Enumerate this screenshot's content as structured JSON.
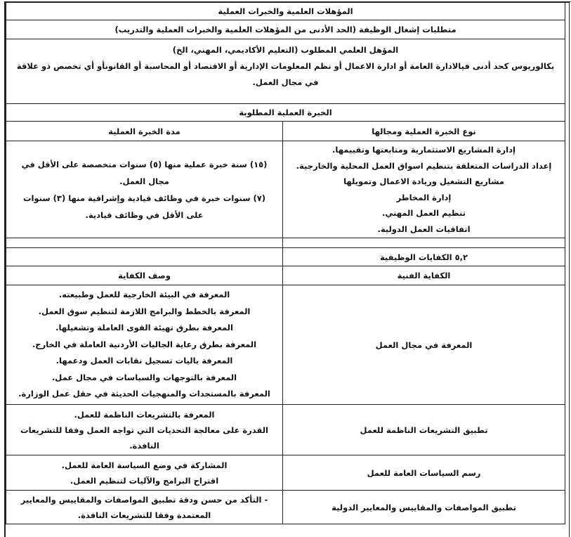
{
  "section_title": "المؤهلات العلمية والخبرات العملية",
  "requirements_title": "متطلبات إشغال الوظيفة (الحد الأدنى من المؤهلات العلمية والخبرات العملية والتدريب)",
  "qualification": {
    "heading": "المؤهل العلمي المطلوب (التعليم الأكاديمي، المهني، الخ)",
    "text": "بكالوريوس كحد أدنى فيالادارة العامة أو ادارة الاعمال أو نظم المعلومات الإدارية أو الاقتصاد أو المحاسبة أو القانونأو أي تخصص ذو علاقة في مجال العمل."
  },
  "experience": {
    "title": "الخبرة العملية المطلوبة",
    "col_type": "نوع الخبرة العملية ومجالها",
    "col_duration": "مدة الخبرة العملية",
    "types": [
      "إدارة المشاريع الاستثمارية ومتابعتها وتقييمها.",
      "إعداد الدراسات المتعلقة بتنظيم اسواق العمل المحلية والخارجية.",
      "مشاريع التشغيل وريادة الاعمال وتمويلها",
      "إدارة المخاطر",
      "تنظيم العمل المهني.",
      "اتفاقيات العمل الدولية."
    ],
    "durations": [
      "(١٥) سنة خبرة عملية منها (٥) سنوات متخصصة على الأقل في مجال العمل.",
      "(٧) سنوات خبرة في وظائف قيادية وإشراقية منها (٣) سنوات على الأقل في وظائف قيادية."
    ]
  },
  "competencies": {
    "title": "٥,٢ الكفايات الوظيفية",
    "col_competency": "الكفاية الفنية",
    "col_description": "وصف الكفاية",
    "rows": [
      {
        "name": "المعرفة في مجال العمل",
        "lines": [
          "المعرفة في البيئة الخارجية للعمل وطبيعته.",
          "المعرفة بالخطط والبرامج اللازمة لتنظيم سوق العمل.",
          "المعرفة بطرق تهيئة القوى العاملة وتشغيلها.",
          "المعرفة بطرق رعاية الجاليات الأردنية العاملة في الخارج.",
          "المعرفة باليات تسجيل نقابات العمل ودعمها.",
          "المعرفة بالتوجهات والسياسات في مجال عمل.",
          "المعرفة بالمستجدات والمنهجيات الحديثة في حقل عمل الوزارة."
        ]
      },
      {
        "name": "تطبيق التشريعات الناظمة للعمل",
        "lines": [
          "المعرفة بالتشريعات الناظمة للعمل.",
          "القدرة على معالجة التحديات التي تواجه العمل وفقا للتشريعات النافذة."
        ]
      },
      {
        "name": "رسم السياسات العامة للعمل",
        "lines": [
          "المشاركة في وضع السياسة العامة للعمل.",
          "اقتراح البرامج والآليات لتنظيم العمل."
        ]
      },
      {
        "name": "تطبيق المواصفات والمقاييس والمعايير الدولية",
        "lines": [
          "- التأكد من حسن ودقة تطبيق المواصفات والمقاييس والمعايير المعتمدة وفقا للتشريعات النافذة."
        ]
      }
    ]
  }
}
